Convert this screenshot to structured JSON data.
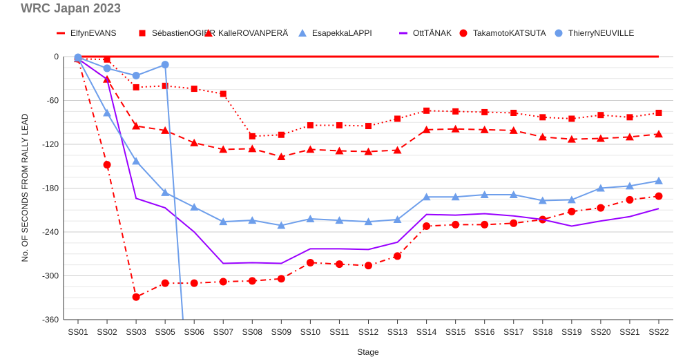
{
  "chart_data": {
    "type": "line",
    "title": "WRC Japan 2023",
    "xlabel": "Stage",
    "ylabel": "No. OF SECONDS FROM RALLY LEAD",
    "ylim": [
      -360,
      0
    ],
    "yticks": [
      0,
      -60,
      -120,
      -180,
      -240,
      -300,
      -360
    ],
    "grid": true,
    "legend_position": "top",
    "categories": [
      "SS01",
      "SS02",
      "SS03",
      "SS05",
      "SS06",
      "SS07",
      "SS08",
      "SS09",
      "SS10",
      "SS11",
      "SS12",
      "SS13",
      "SS14",
      "SS15",
      "SS16",
      "SS17",
      "SS18",
      "SS19",
      "SS20",
      "SS21",
      "SS22"
    ],
    "series": [
      {
        "name": "ElfynEVANS",
        "color": "#ff0000",
        "marker": "none",
        "dash": "solid",
        "values": [
          0,
          0,
          0,
          0,
          0,
          0,
          0,
          0,
          0,
          0,
          0,
          0,
          0,
          0,
          0,
          0,
          0,
          0,
          0,
          0,
          0
        ]
      },
      {
        "name": "SébastienOGIER",
        "color": "#ff0000",
        "marker": "square",
        "dash": "dotted",
        "values": [
          -3,
          -4,
          -42,
          -40,
          -44,
          -51,
          -109,
          -107,
          -94,
          -94,
          -95,
          -85,
          -74,
          -75,
          -76,
          -77,
          -83,
          -85,
          -80,
          -83,
          -77
        ]
      },
      {
        "name": "KalleROVANPERÄ",
        "color": "#ff0000",
        "marker": "triangle",
        "dash": "dashed",
        "values": [
          -3,
          -31,
          -95,
          -101,
          -118,
          -127,
          -126,
          -137,
          -127,
          -129,
          -130,
          -128,
          -100,
          -99,
          -100,
          -101,
          -110,
          -113,
          -112,
          -110,
          -106
        ]
      },
      {
        "name": "EsapekkaLAPPI",
        "color": "#6d9eeb",
        "marker": "triangle",
        "dash": "solid",
        "values": [
          -2,
          -77,
          -143,
          -186,
          -206,
          -226,
          -224,
          -231,
          -222,
          -224,
          -226,
          -223,
          -192,
          -192,
          -189,
          -189,
          -197,
          -196,
          -180,
          -177,
          -170
        ]
      },
      {
        "name": "OttTÄNAK",
        "color": "#9900ff",
        "marker": "none",
        "dash": "solid",
        "values": [
          -3,
          -31,
          -194,
          -207,
          -240,
          -283,
          -282,
          -283,
          -263,
          -263,
          -264,
          -254,
          -216,
          -217,
          -215,
          -218,
          -223,
          -232,
          -225,
          -219,
          -208
        ]
      },
      {
        "name": "TakamotoKATSUTA",
        "color": "#ff0000",
        "marker": "circle",
        "dash": "dashdot",
        "values": [
          -3,
          -148,
          -329,
          -310,
          -310,
          -308,
          -307,
          -304,
          -282,
          -284,
          -286,
          -273,
          -232,
          -230,
          -230,
          -228,
          -223,
          -212,
          -207,
          -196,
          -191
        ]
      },
      {
        "name": "ThierryNEUVILLE",
        "color": "#6d9eeb",
        "marker": "circle",
        "dash": "solid",
        "values": [
          -1,
          -16,
          -26,
          -11,
          -580,
          null,
          null,
          null,
          null,
          null,
          null,
          null,
          null,
          null,
          null,
          null,
          null,
          null,
          null,
          null,
          null
        ]
      }
    ]
  }
}
